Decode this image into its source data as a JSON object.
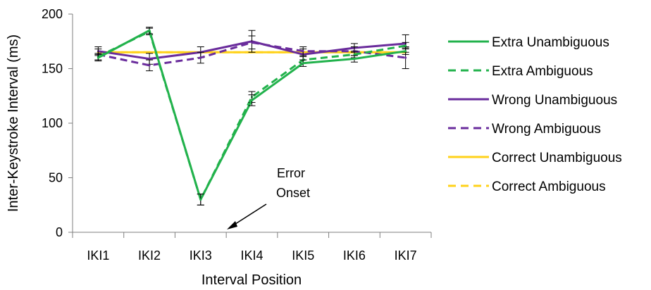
{
  "chart_data": {
    "type": "line",
    "title": "",
    "xlabel": "Interval Position",
    "ylabel": "Inter-Keystroke Interval (ms)",
    "categories": [
      "IKI1",
      "IKI2",
      "IKI3",
      "IKI4",
      "IKI5",
      "IKI6",
      "IKI7"
    ],
    "ylim": [
      0,
      200
    ],
    "yticks": [
      "0",
      "50",
      "100",
      "150",
      "200"
    ],
    "grid": false,
    "legend_position": "right",
    "series": [
      {
        "name": "Extra Unambiguous",
        "color": "#22b24c",
        "dash": "solid",
        "values": [
          160,
          185,
          30,
          121,
          155,
          159,
          166
        ],
        "errors": [
          3,
          3,
          5,
          5,
          3,
          3,
          3
        ]
      },
      {
        "name": "Extra Ambiguous",
        "color": "#22b24c",
        "dash": "dashed",
        "values": [
          161,
          184,
          30,
          124,
          158,
          163,
          171
        ],
        "errors": [
          3,
          3,
          5,
          5,
          3,
          3,
          3
        ]
      },
      {
        "name": "Wrong Unambiguous",
        "color": "#6a2c9c",
        "dash": "solid",
        "values": [
          166,
          159,
          165,
          175,
          163,
          169,
          173
        ],
        "errors": [
          4,
          5,
          5,
          10,
          5,
          4,
          8
        ]
      },
      {
        "name": "Wrong Ambiguous",
        "color": "#6a2c9c",
        "dash": "dashed",
        "values": [
          163,
          153,
          160,
          174,
          166,
          166,
          160
        ],
        "errors": [
          5,
          5,
          5,
          6,
          4,
          4,
          10
        ]
      },
      {
        "name": "Correct Unambiguous",
        "color": "#ffd21a",
        "dash": "solid",
        "values": [
          165,
          165,
          165,
          165,
          165,
          165,
          165
        ],
        "errors": [
          0,
          0,
          0,
          0,
          0,
          0,
          0
        ]
      },
      {
        "name": "Correct Ambiguous",
        "color": "#ffd21a",
        "dash": "dashed",
        "values": [
          165,
          165,
          165,
          165,
          165,
          165,
          165
        ],
        "errors": [
          0,
          0,
          0,
          0,
          0,
          0,
          0
        ]
      }
    ],
    "annotations": [
      {
        "text_lines": [
          "Error",
          "Onset"
        ],
        "position": "between IKI3 and IKI4, near baseline"
      }
    ]
  }
}
